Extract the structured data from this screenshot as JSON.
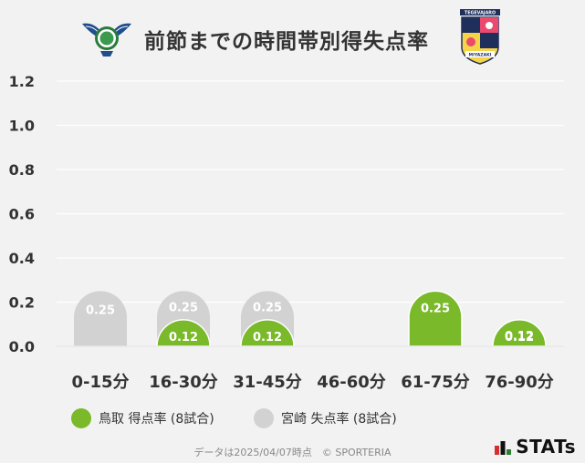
{
  "title": "前節までの時間帯別得失点率",
  "logos": {
    "left_team": "tottori-crest",
    "right_team": "miyazaki-crest",
    "right_team_text_top": "TEGEVAJARO",
    "right_team_text_bottom": "MIYAZAKI"
  },
  "colors": {
    "scored": "#7ab929",
    "conceded": "#d2d2d2",
    "background": "#f2f2f2",
    "gridline": "#ffffff",
    "text": "#333333"
  },
  "legend": {
    "scored": "鳥取 得点率 (8試合)",
    "conceded": "宮崎 失点率 (8試合)"
  },
  "footer": "データは2025/04/07時点　© SPORTERIA",
  "brand": "STATs",
  "chart_data": {
    "type": "bar",
    "title": "前節までの時間帯別得失点率",
    "categories": [
      "0-15分",
      "16-30分",
      "31-45分",
      "46-60分",
      "61-75分",
      "76-90分"
    ],
    "ylim": [
      0,
      1.2
    ],
    "yticks": [
      "0.0",
      "0.2",
      "0.4",
      "0.6",
      "0.8",
      "1.0",
      "1.2"
    ],
    "grid": true,
    "legend_position": "bottom",
    "series": [
      {
        "name": "鳥取 得点率 (8試合)",
        "values": [
          0,
          0.12,
          0.12,
          0,
          0.25,
          0.12
        ],
        "labels": [
          "",
          "0.12",
          "0.12",
          "",
          "0.25",
          "0.12"
        ]
      },
      {
        "name": "宮崎 失点率 (8試合)",
        "values": [
          0.25,
          0.25,
          0.25,
          0,
          0,
          0.12
        ],
        "labels": [
          "0.25",
          "0.25",
          "0.25",
          "",
          "",
          "0.12"
        ]
      }
    ]
  }
}
